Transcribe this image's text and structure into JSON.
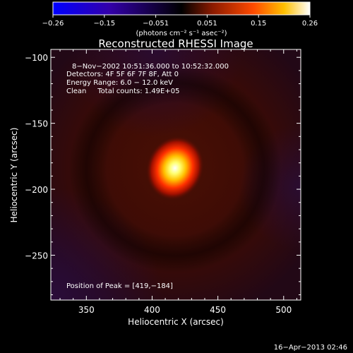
{
  "chart_data": {
    "type": "heatmap",
    "title": "Reconstructed RHESSI Image",
    "colorbar": {
      "ticks": [
        "−0.26",
        "−0.15",
        "−0.051",
        "0.051",
        "0.15",
        "0.26"
      ],
      "unit_label": "(photons cm⁻² s⁻¹ asec⁻²)",
      "range": [
        -0.26,
        0.26
      ],
      "colors": [
        "#0000ff",
        "#3300aa",
        "#000000",
        "#8a1a00",
        "#ff4a00",
        "#ffc000",
        "#ffffff"
      ]
    },
    "annotations": [
      "8−Nov−2002 10:51:36.000 to 10:52:32.000",
      "Detectors: 4F 5F 6F 7F 8F, Att 0",
      "Energy Range: 6.0 − 12.0 keV",
      "Clean     Total counts: 1.49E+05"
    ],
    "peak_label": "Position of Peak = [419,−184]",
    "peak": {
      "x": 419,
      "y": -184
    },
    "xlabel": "Heliocentric X (arcsec)",
    "ylabel": "Heliocentric Y (arcsec)",
    "xlim": [
      323,
      513
    ],
    "ylim": [
      -284,
      -94
    ],
    "xticks": [
      {
        "value": 350,
        "label": "350"
      },
      {
        "value": 400,
        "label": "400"
      },
      {
        "value": 450,
        "label": "450"
      },
      {
        "value": 500,
        "label": "500"
      }
    ],
    "yticks": [
      {
        "value": -100,
        "label": "−100"
      },
      {
        "value": -150,
        "label": "−150"
      },
      {
        "value": -200,
        "label": "−200"
      },
      {
        "value": -250,
        "label": "−250"
      }
    ]
  },
  "footer": {
    "date": "16−Apr−2013 02:46"
  }
}
